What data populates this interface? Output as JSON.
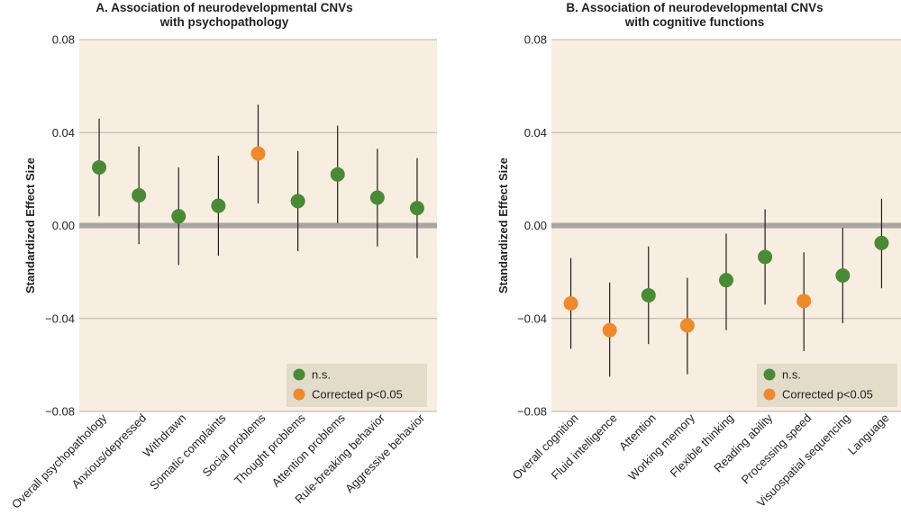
{
  "colors": {
    "plot_bg": "#f7ede0",
    "grid": "#b9b1a8",
    "zero_line": "#a8a5a3",
    "errbar": "#231f20",
    "legend_bg": "#e3dccb",
    "ns": "#4a8a36",
    "sig": "#ee8a2e"
  },
  "chart_data": [
    {
      "type": "scatter",
      "title_lines": [
        "A. Association of neurodevelopmental CNVs",
        "with psychopathology"
      ],
      "ylabel": "Standardized Effect Size",
      "ylim": [
        -0.08,
        0.08
      ],
      "yticks": [
        "0.08",
        "0.04",
        "0.00",
        "−0.04",
        "−0.08"
      ],
      "ytick_values": [
        0.08,
        0.04,
        0.0,
        -0.04,
        -0.08
      ],
      "categories": [
        "Overall psychopathology",
        "Anxious/depressed",
        "Withdrawn",
        "Somatic complaints",
        "Social problems",
        "Thought problems",
        "Attention problems",
        "Rule-breaking behavior",
        "Aggressive behavior"
      ],
      "values": [
        0.025,
        0.013,
        0.004,
        0.0085,
        0.031,
        0.0105,
        0.022,
        0.012,
        0.0075
      ],
      "ci_low": [
        0.004,
        -0.008,
        -0.017,
        -0.013,
        0.0095,
        -0.011,
        0.001,
        -0.009,
        -0.014
      ],
      "ci_high": [
        0.046,
        0.034,
        0.025,
        0.03,
        0.052,
        0.032,
        0.043,
        0.033,
        0.029
      ],
      "significant": [
        false,
        false,
        false,
        false,
        true,
        false,
        false,
        false,
        false
      ],
      "legend": {
        "ns": "n.s.",
        "sig": "Corrected p<0.05"
      }
    },
    {
      "type": "scatter",
      "title_lines": [
        "B. Association of neurodevelopmental CNVs",
        "with cognitive functions"
      ],
      "ylabel": "Standardized Effect Size",
      "ylim": [
        -0.08,
        0.08
      ],
      "yticks": [
        "0.08",
        "0.04",
        "0.00",
        "−0.04",
        "−0.08"
      ],
      "ytick_values": [
        0.08,
        0.04,
        0.0,
        -0.04,
        -0.08
      ],
      "categories": [
        "Overall cognition",
        "Fluid intelligence",
        "Attention",
        "Working memory",
        "Flexible thinking",
        "Reading ability",
        "Processing speed",
        "Visuospatial sequencing",
        "Language"
      ],
      "values": [
        -0.0335,
        -0.045,
        -0.03,
        -0.043,
        -0.0235,
        -0.0135,
        -0.0325,
        -0.0215,
        -0.0075
      ],
      "ci_low": [
        -0.053,
        -0.065,
        -0.051,
        -0.064,
        -0.045,
        -0.034,
        -0.054,
        -0.042,
        -0.027
      ],
      "ci_high": [
        -0.014,
        -0.0245,
        -0.009,
        -0.0225,
        -0.0035,
        0.007,
        -0.0115,
        -0.001,
        0.0115
      ],
      "significant": [
        true,
        true,
        false,
        true,
        false,
        false,
        true,
        false,
        false
      ],
      "legend": {
        "ns": "n.s.",
        "sig": "Corrected p<0.05"
      }
    }
  ]
}
